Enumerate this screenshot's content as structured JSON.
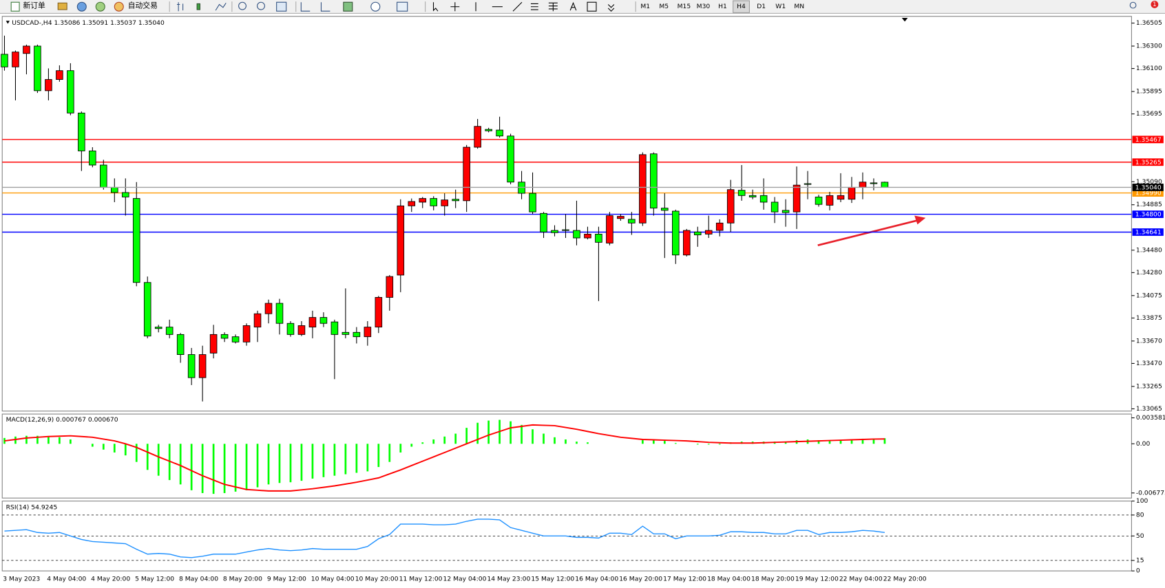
{
  "toolbar": {
    "new_order": "新订单",
    "auto_trading": "自动交易",
    "timeframes": [
      "M1",
      "M5",
      "M15",
      "M30",
      "H1",
      "H4",
      "D1",
      "W1",
      "MN"
    ],
    "active_timeframe": "H4",
    "notifications": 1
  },
  "chart_data": [
    {
      "type": "candlestick",
      "title": "USDCAD-,H4  1.35086 1.35091 1.35037 1.35040",
      "x": [
        "3 May 2023",
        null,
        null,
        null,
        "4 May 04:00",
        null,
        null,
        null,
        "4 May 20:00",
        null,
        null,
        null,
        "5 May 12:00",
        null,
        null,
        null,
        "8 May 04:00",
        null,
        null,
        null,
        "8 May 20:00",
        null,
        null,
        null,
        "9 May 12:00",
        null,
        null,
        null,
        "10 May 04:00",
        null,
        null,
        null,
        "10 May 20:00",
        null,
        null,
        null,
        "11 May 12:00",
        null,
        null,
        null,
        "12 May 04:00",
        null,
        null,
        null,
        "14 May 23:00",
        null,
        null,
        null,
        "15 May 12:00",
        null,
        null,
        null,
        "16 May 04:00",
        null,
        null,
        null,
        "16 May 20:00",
        null,
        null,
        null,
        "17 May 12:00",
        null,
        null,
        null,
        "18 May 04:00",
        null,
        null,
        null,
        "18 May 20:00",
        null,
        null,
        null,
        "19 May 12:00",
        null,
        null,
        null,
        "22 May 04:00",
        null,
        null,
        null,
        "22 May 20:00"
      ],
      "ohlc": [
        [
          1.36227,
          1.36393,
          1.36081,
          1.36114
        ],
        [
          1.36114,
          1.3626,
          1.35816,
          1.36247
        ],
        [
          1.36234,
          1.36313,
          1.36048,
          1.363
        ],
        [
          1.363,
          1.36313,
          1.35882,
          1.35902
        ],
        [
          1.35902,
          1.36101,
          1.35816,
          1.36002
        ],
        [
          1.36002,
          1.36128,
          1.35982,
          1.36081
        ],
        [
          1.36081,
          1.36147,
          1.35683,
          1.35703
        ],
        [
          1.35703,
          1.35717,
          1.35186,
          1.35365
        ],
        [
          1.35365,
          1.35398,
          1.35219,
          1.35239
        ],
        [
          1.35239,
          1.35286,
          1.3502,
          1.3504
        ],
        [
          1.3504,
          1.3512,
          1.34908,
          1.34994
        ],
        [
          1.34994,
          1.3512,
          1.34788,
          1.34954
        ],
        [
          1.34941,
          1.35087,
          1.34158,
          1.34192
        ],
        [
          1.34192,
          1.34245,
          1.33694,
          1.33714
        ],
        [
          1.33794,
          1.33814,
          1.33747,
          1.33781
        ],
        [
          1.33794,
          1.3386,
          1.33694,
          1.33728
        ],
        [
          1.33728,
          1.33741,
          1.33476,
          1.33549
        ],
        [
          1.33549,
          1.33608,
          1.33277,
          1.33343
        ],
        [
          1.33343,
          1.33628,
          1.33131,
          1.33549
        ],
        [
          1.33562,
          1.33814,
          1.33515,
          1.33728
        ],
        [
          1.33728,
          1.33747,
          1.33661,
          1.33694
        ],
        [
          1.33708,
          1.33728,
          1.33648,
          1.33661
        ],
        [
          1.33661,
          1.33827,
          1.33628,
          1.33807
        ],
        [
          1.33794,
          1.3394,
          1.33661,
          1.33913
        ],
        [
          1.33913,
          1.34039,
          1.33827,
          1.34006
        ],
        [
          1.34006,
          1.34046,
          1.33728,
          1.33827
        ],
        [
          1.33827,
          1.33847,
          1.33708,
          1.33728
        ],
        [
          1.33728,
          1.33847,
          1.33714,
          1.33807
        ],
        [
          1.33794,
          1.3394,
          1.33694,
          1.3388
        ],
        [
          1.3388,
          1.33926,
          1.33794,
          1.33827
        ],
        [
          1.3384,
          1.3386,
          1.3333,
          1.33728
        ],
        [
          1.33747,
          1.34139,
          1.33694,
          1.33728
        ],
        [
          1.33747,
          1.33794,
          1.33648,
          1.33708
        ],
        [
          1.33708,
          1.33847,
          1.33628,
          1.33794
        ],
        [
          1.33794,
          1.34072,
          1.33741,
          1.34059
        ],
        [
          1.34059,
          1.34258,
          1.3394,
          1.34245
        ],
        [
          1.34258,
          1.34934,
          1.34105,
          1.34875
        ],
        [
          1.34875,
          1.34941,
          1.34821,
          1.34914
        ],
        [
          1.34908,
          1.34954,
          1.34855,
          1.34941
        ],
        [
          1.34941,
          1.34961,
          1.34835,
          1.34875
        ],
        [
          1.34875,
          1.34987,
          1.34788,
          1.34928
        ],
        [
          1.34934,
          1.3502,
          1.34855,
          1.34921
        ],
        [
          1.34921,
          1.35418,
          1.34821,
          1.35398
        ],
        [
          1.35398,
          1.3565,
          1.35385,
          1.35584
        ],
        [
          1.35557,
          1.35571,
          1.35531,
          1.35544
        ],
        [
          1.35551,
          1.3567,
          1.35484,
          1.35498
        ],
        [
          1.35498,
          1.35518,
          1.35067,
          1.35087
        ],
        [
          1.35087,
          1.35186,
          1.34934,
          1.34987
        ],
        [
          1.34987,
          1.35173,
          1.34802,
          1.34821
        ],
        [
          1.34808,
          1.34821,
          1.34589,
          1.34642
        ],
        [
          1.34656,
          1.34702,
          1.34603,
          1.34636
        ],
        [
          1.34662,
          1.34802,
          1.34589,
          1.34656
        ],
        [
          1.34656,
          1.34921,
          1.34523,
          1.34589
        ],
        [
          1.34589,
          1.34689,
          1.34576,
          1.34623
        ],
        [
          1.34623,
          1.34689,
          1.34026,
          1.3455
        ],
        [
          1.34543,
          1.34821,
          1.34523,
          1.34788
        ],
        [
          1.34762,
          1.34802,
          1.34742,
          1.34782
        ],
        [
          1.34755,
          1.34821,
          1.34616,
          1.34722
        ],
        [
          1.34722,
          1.35352,
          1.34696,
          1.35332
        ],
        [
          1.35339,
          1.35352,
          1.34788,
          1.34855
        ],
        [
          1.34855,
          1.34987,
          1.3441,
          1.34835
        ],
        [
          1.34828,
          1.34841,
          1.34357,
          1.34437
        ],
        [
          1.34437,
          1.34669,
          1.34424,
          1.34656
        ],
        [
          1.34642,
          1.34689,
          1.3451,
          1.34616
        ],
        [
          1.34623,
          1.34788,
          1.34589,
          1.34656
        ],
        [
          1.34656,
          1.34755,
          1.34603,
          1.34722
        ],
        [
          1.34722,
          1.35107,
          1.34642,
          1.3502
        ],
        [
          1.35014,
          1.35239,
          1.34921,
          1.34967
        ],
        [
          1.34967,
          1.3502,
          1.34934,
          1.34954
        ],
        [
          1.34967,
          1.3512,
          1.34841,
          1.34908
        ],
        [
          1.34908,
          1.34954,
          1.34722,
          1.34821
        ],
        [
          1.34835,
          1.34934,
          1.34689,
          1.34815
        ],
        [
          1.34821,
          1.35226,
          1.34669,
          1.3506
        ],
        [
          1.35073,
          1.35186,
          1.34934,
          1.35067
        ],
        [
          1.34954,
          1.34974,
          1.34868,
          1.34888
        ],
        [
          1.34881,
          1.35,
          1.34835,
          1.34967
        ],
        [
          1.34934,
          1.35166,
          1.34908,
          1.34967
        ],
        [
          1.34934,
          1.35133,
          1.34901,
          1.3504
        ],
        [
          1.3504,
          1.35173,
          1.34934,
          1.35087
        ],
        [
          1.3508,
          1.3512,
          1.35014,
          1.35073
        ],
        [
          1.35086,
          1.35091,
          1.35037,
          1.3504
        ]
      ],
      "up_color": "#ff0000",
      "down_color": "#00ff00",
      "ylim": [
        1.33045,
        1.36565
      ],
      "yticks": [
        {
          "value": 1.36505,
          "label": "1.36505"
        },
        {
          "value": 1.363,
          "label": "1.36300"
        },
        {
          "value": 1.361,
          "label": "1.36100"
        },
        {
          "value": 1.35895,
          "label": "1.35895"
        },
        {
          "value": 1.35695,
          "label": "1.35695"
        },
        {
          "value": 1.3509,
          "label": "1.35090"
        },
        {
          "value": 1.34885,
          "label": "1.34885"
        },
        {
          "value": 1.3448,
          "label": "1.34480"
        },
        {
          "value": 1.3428,
          "label": "1.34280"
        },
        {
          "value": 1.34075,
          "label": "1.34075"
        },
        {
          "value": 1.33875,
          "label": "1.33875"
        },
        {
          "value": 1.3367,
          "label": "1.33670"
        },
        {
          "value": 1.3347,
          "label": "1.33470"
        },
        {
          "value": 1.33265,
          "label": "1.33265"
        },
        {
          "value": 1.33065,
          "label": "1.33065"
        }
      ],
      "levels": [
        {
          "value": 1.35467,
          "label": "1.35467",
          "color": "#ff0000"
        },
        {
          "value": 1.35265,
          "label": "1.35265",
          "color": "#ff0000"
        },
        {
          "value": 1.3499,
          "label": "1.34990",
          "color": "#ff9900"
        },
        {
          "value": 1.348,
          "label": "1.34800",
          "color": "#0000ff"
        },
        {
          "value": 1.34641,
          "label": "1.34641",
          "color": "#0000ff"
        }
      ],
      "current_price": {
        "value": 1.3504,
        "label": "1.35040",
        "color": "#000000"
      }
    },
    {
      "type": "macd",
      "title": "MACD(12,26,9) 0.000767 0.000670",
      "histogram": [
        0.0008,
        0.001,
        0.0011,
        0.0011,
        0.001,
        0.0009,
        0.0006,
        0,
        -0.0004,
        -0.0008,
        -0.0012,
        -0.0016,
        -0.0025,
        -0.0036,
        -0.0044,
        -0.005,
        -0.0056,
        -0.0064,
        -0.0068,
        -0.0069,
        -0.0068,
        -0.0066,
        -0.0064,
        -0.006,
        -0.0056,
        -0.0054,
        -0.0053,
        -0.0051,
        -0.0048,
        -0.0046,
        -0.0044,
        -0.0042,
        -0.004,
        -0.0038,
        -0.0032,
        -0.0025,
        -0.0012,
        -0.0004,
        0.0002,
        0.0006,
        0.001,
        0.0014,
        0.0022,
        0.0029,
        0.0032,
        0.0033,
        0.0031,
        0.0026,
        0.002,
        0.0014,
        0.0009,
        0.0006,
        0.0003,
        0.0002,
        0,
        0,
        0,
        0,
        0.0005,
        0.0006,
        0.0004,
        0.0001,
        0,
        -0.0001,
        -0.0001,
        -0.0001,
        0.0002,
        0.0003,
        0.0003,
        0.0003,
        0.0003,
        0.0002,
        0.0005,
        0.0006,
        0.0005,
        0.0005,
        0.0005,
        0.0006,
        0.0007,
        0.0007,
        0.000767
      ],
      "signal": [
        0.0004,
        0.0006,
        0.0008,
        0.0009,
        0.001,
        0.00105,
        0.0011,
        0.001,
        0.0009,
        0.00065,
        0.0004,
        0,
        -0.0005,
        -0.00115,
        -0.0018,
        -0.0024,
        -0.003,
        -0.0037,
        -0.0044,
        -0.005,
        -0.0056,
        -0.00595,
        -0.0063,
        -0.0064,
        -0.0065,
        -0.0065,
        -0.0065,
        -0.00635,
        -0.0062,
        -0.006,
        -0.0058,
        -0.00555,
        -0.0053,
        -0.005,
        -0.0047,
        -0.00415,
        -0.0036,
        -0.003,
        -0.0024,
        -0.0018,
        -0.0012,
        -0.0006,
        0,
        0.0006,
        0.0012,
        0.0017,
        0.0022,
        0.0024,
        0.0026,
        0.00255,
        0.0025,
        0.00225,
        0.002,
        0.0017,
        0.0014,
        0.00115,
        0.0009,
        0.00075,
        0.0006,
        0.00055,
        0.0005,
        0.00045,
        0.0004,
        0.0003,
        0.0002,
        0.00015,
        0.0001,
        0.0001,
        0.0001,
        0.00015,
        0.0002,
        0.00025,
        0.0003,
        0.00035,
        0.0004,
        0.00045,
        0.0005,
        0.00055,
        0.0006,
        0.00065,
        0.00067
      ],
      "histogram_color": "#00ff00",
      "signal_color": "#ff0000",
      "ylim": [
        -0.00748,
        0.0041
      ],
      "yticks": [
        0.003581,
        {
          "value": 0,
          "label": "0.00"
        },
        -0.006775
      ]
    },
    {
      "type": "rsi",
      "title": "RSI(14) 54.9245",
      "values": [
        57,
        58,
        59,
        55,
        54,
        55,
        50,
        45,
        42,
        41,
        40,
        39,
        31,
        24,
        25,
        24,
        20,
        19,
        21,
        24,
        24,
        24,
        27,
        30,
        32,
        30,
        29,
        30,
        32,
        31,
        31,
        31,
        31,
        35,
        46,
        52,
        67,
        67,
        67,
        66,
        66,
        67,
        71,
        74,
        74,
        73,
        62,
        58,
        54,
        50,
        50,
        50,
        48,
        48,
        47,
        54,
        54,
        52,
        64,
        53,
        53,
        46,
        50,
        50,
        50,
        51,
        56,
        56,
        55,
        55,
        53,
        53,
        58,
        58,
        52,
        55,
        55,
        56,
        58,
        57,
        54.9245
      ],
      "color": "#1e90ff",
      "ylim": [
        0,
        100
      ],
      "yticks": [
        100,
        80,
        50,
        15,
        0
      ],
      "levels": [
        80,
        50,
        15
      ]
    }
  ]
}
